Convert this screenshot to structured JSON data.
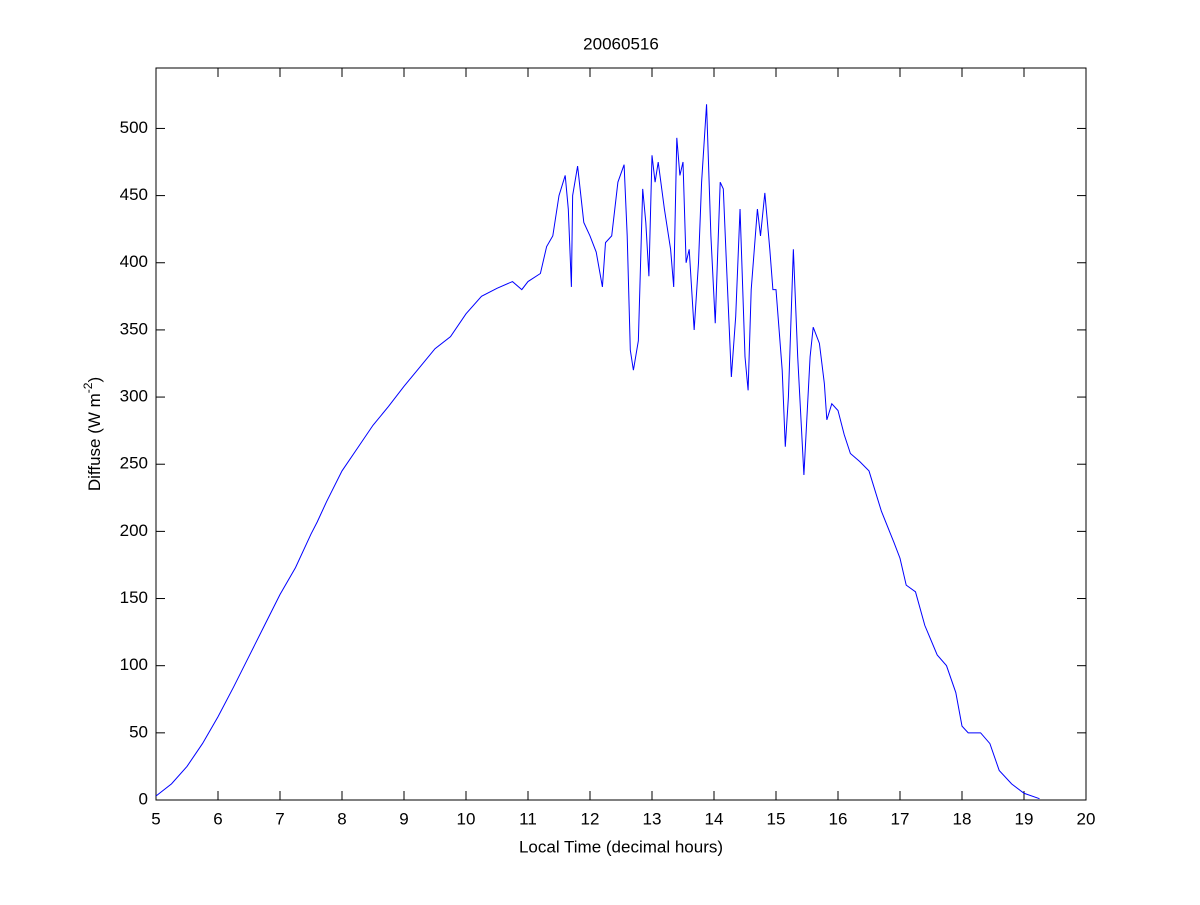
{
  "chart_data": {
    "type": "line",
    "title": "20060516",
    "xlabel": "Local Time (decimal hours)",
    "ylabel": {
      "text": "Diffuse (W m",
      "superscript": "-2",
      "suffix": ")"
    },
    "x": [
      5.0,
      5.25,
      5.5,
      5.75,
      6.0,
      6.25,
      6.5,
      6.75,
      7.0,
      7.25,
      7.5,
      7.6,
      7.75,
      8.0,
      8.25,
      8.5,
      8.75,
      9.0,
      9.25,
      9.5,
      9.75,
      10.0,
      10.25,
      10.5,
      10.75,
      10.9,
      11.0,
      11.2,
      11.3,
      11.4,
      11.5,
      11.6,
      11.65,
      11.7,
      11.72,
      11.8,
      11.9,
      12.0,
      12.1,
      12.2,
      12.25,
      12.35,
      12.45,
      12.55,
      12.6,
      12.65,
      12.7,
      12.78,
      12.85,
      12.9,
      12.95,
      13.0,
      13.05,
      13.1,
      13.2,
      13.3,
      13.35,
      13.4,
      13.45,
      13.5,
      13.55,
      13.6,
      13.68,
      13.75,
      13.8,
      13.88,
      13.95,
      14.02,
      14.1,
      14.15,
      14.2,
      14.28,
      14.35,
      14.42,
      14.5,
      14.55,
      14.6,
      14.7,
      14.75,
      14.82,
      14.9,
      14.95,
      15.0,
      15.1,
      15.15,
      15.2,
      15.28,
      15.35,
      15.45,
      15.55,
      15.6,
      15.7,
      15.78,
      15.82,
      15.9,
      16.0,
      16.1,
      16.2,
      16.35,
      16.5,
      16.7,
      16.9,
      17.0,
      17.1,
      17.25,
      17.4,
      17.6,
      17.75,
      17.9,
      18.0,
      18.1,
      18.3,
      18.45,
      18.6,
      18.8,
      19.0,
      19.25
    ],
    "values": [
      3,
      12,
      25,
      42,
      62,
      84,
      107,
      130,
      153,
      173,
      198,
      207,
      222,
      245,
      262,
      279,
      293,
      308,
      322,
      336,
      345,
      362,
      375,
      381,
      386,
      380,
      386,
      392,
      412,
      420,
      450,
      465,
      440,
      382,
      450,
      472,
      430,
      420,
      408,
      382,
      415,
      420,
      460,
      473,
      420,
      335,
      320,
      342,
      455,
      430,
      390,
      480,
      460,
      475,
      440,
      410,
      382,
      493,
      465,
      475,
      400,
      410,
      350,
      400,
      460,
      518,
      420,
      355,
      460,
      455,
      400,
      315,
      360,
      440,
      330,
      305,
      380,
      440,
      420,
      452,
      410,
      380,
      380,
      320,
      263,
      300,
      410,
      330,
      242,
      330,
      352,
      340,
      310,
      283,
      295,
      290,
      272,
      258,
      252,
      245,
      215,
      192,
      180,
      160,
      155,
      130,
      108,
      100,
      80,
      55,
      50,
      50,
      42,
      22,
      12,
      5,
      1
    ],
    "color": "#0000ff",
    "xlim": [
      5,
      20
    ],
    "xticks": [
      5,
      6,
      7,
      8,
      9,
      10,
      11,
      12,
      13,
      14,
      15,
      16,
      17,
      18,
      19,
      20
    ],
    "ylim": [
      0,
      545
    ],
    "yticks": [
      0,
      50,
      100,
      150,
      200,
      250,
      300,
      350,
      400,
      450,
      500
    ],
    "grid": false
  }
}
